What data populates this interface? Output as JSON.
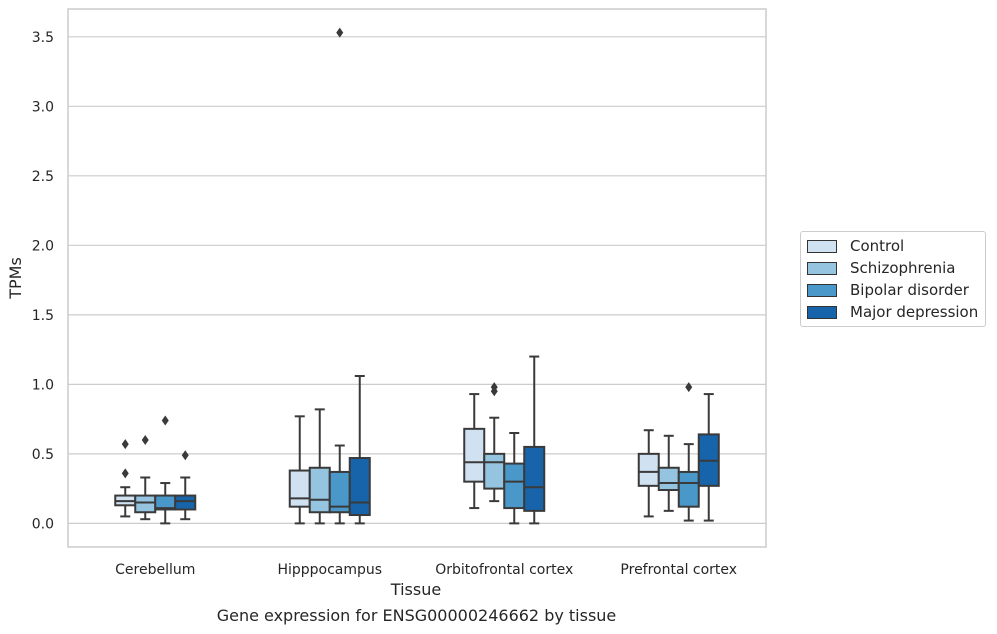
{
  "caption": "Gene expression for ENSG00000246662 by tissue",
  "chart_data": {
    "type": "box",
    "title": "",
    "xlabel": "Tissue",
    "ylabel": "TPMs",
    "categories": [
      "Cerebellum",
      "Hipppocampus",
      "Orbitofrontal cortex",
      "Prefrontal cortex"
    ],
    "yticks": [
      "0.0",
      "0.5",
      "1.0",
      "1.5",
      "2.0",
      "2.5",
      "3.0",
      "3.5"
    ],
    "ylim": [
      -0.17,
      3.7
    ],
    "grid": true,
    "legend_position": "right",
    "series": [
      {
        "name": "Control",
        "color": "#d0e1f2",
        "boxes": [
          {
            "whislo": 0.05,
            "q1": 0.13,
            "med": 0.16,
            "q3": 0.2,
            "whishi": 0.26,
            "fliers": [
              0.57,
              0.36
            ]
          },
          {
            "whislo": 0.0,
            "q1": 0.12,
            "med": 0.18,
            "q3": 0.38,
            "whishi": 0.77,
            "fliers": []
          },
          {
            "whislo": 0.11,
            "q1": 0.3,
            "med": 0.44,
            "q3": 0.68,
            "whishi": 0.93,
            "fliers": []
          },
          {
            "whislo": 0.05,
            "q1": 0.27,
            "med": 0.37,
            "q3": 0.5,
            "whishi": 0.67,
            "fliers": []
          }
        ]
      },
      {
        "name": "Schizophrenia",
        "color": "#94c4df",
        "boxes": [
          {
            "whislo": 0.03,
            "q1": 0.08,
            "med": 0.15,
            "q3": 0.2,
            "whishi": 0.33,
            "fliers": [
              0.6
            ]
          },
          {
            "whislo": 0.0,
            "q1": 0.08,
            "med": 0.17,
            "q3": 0.4,
            "whishi": 0.82,
            "fliers": []
          },
          {
            "whislo": 0.16,
            "q1": 0.25,
            "med": 0.44,
            "q3": 0.5,
            "whishi": 0.76,
            "fliers": [
              0.98,
              0.95
            ]
          },
          {
            "whislo": 0.09,
            "q1": 0.24,
            "med": 0.29,
            "q3": 0.4,
            "whishi": 0.63,
            "fliers": []
          }
        ]
      },
      {
        "name": "Bipolar disorder",
        "color": "#4a98c9",
        "boxes": [
          {
            "whislo": 0.0,
            "q1": 0.1,
            "med": 0.11,
            "q3": 0.2,
            "whishi": 0.29,
            "fliers": [
              0.74
            ]
          },
          {
            "whislo": 0.0,
            "q1": 0.08,
            "med": 0.12,
            "q3": 0.37,
            "whishi": 0.56,
            "fliers": [
              3.53
            ]
          },
          {
            "whislo": 0.0,
            "q1": 0.11,
            "med": 0.3,
            "q3": 0.43,
            "whishi": 0.65,
            "fliers": []
          },
          {
            "whislo": 0.02,
            "q1": 0.12,
            "med": 0.29,
            "q3": 0.37,
            "whishi": 0.57,
            "fliers": [
              0.98
            ]
          }
        ]
      },
      {
        "name": "Major depression",
        "color": "#1764ab",
        "boxes": [
          {
            "whislo": 0.03,
            "q1": 0.1,
            "med": 0.16,
            "q3": 0.2,
            "whishi": 0.33,
            "fliers": [
              0.49
            ]
          },
          {
            "whislo": 0.0,
            "q1": 0.06,
            "med": 0.15,
            "q3": 0.47,
            "whishi": 1.06,
            "fliers": []
          },
          {
            "whislo": 0.0,
            "q1": 0.09,
            "med": 0.26,
            "q3": 0.55,
            "whishi": 1.2,
            "fliers": []
          },
          {
            "whislo": 0.02,
            "q1": 0.27,
            "med": 0.45,
            "q3": 0.64,
            "whishi": 0.93,
            "fliers": []
          }
        ]
      }
    ]
  }
}
